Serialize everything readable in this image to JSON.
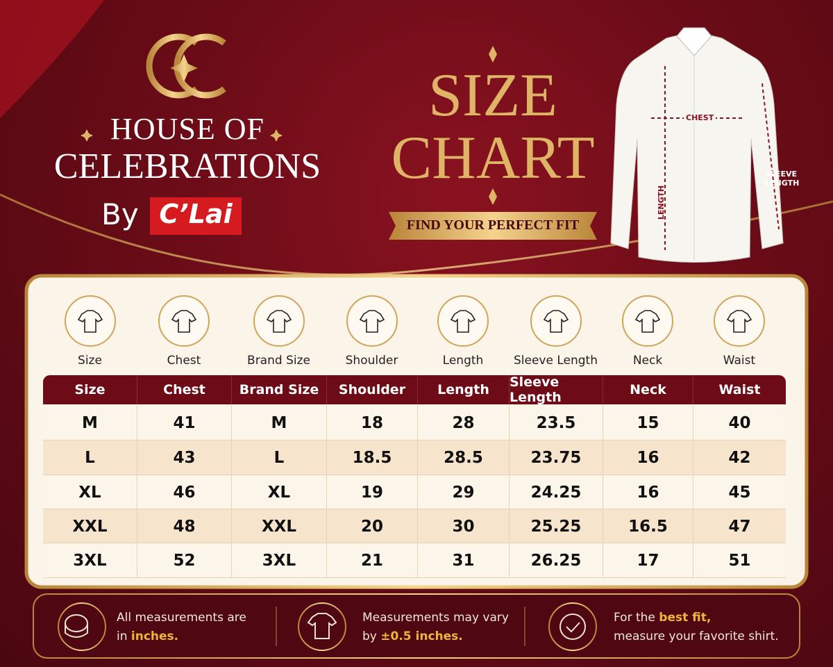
{
  "brand": {
    "line1": "HOUSE OF",
    "line2": "CELEBRATIONS",
    "by": "By",
    "label": "C’Lai"
  },
  "title": {
    "line1": "SIZE",
    "line2": "CHART",
    "tagline": "FIND YOUR PERFECT FIT"
  },
  "diagram": {
    "chest": "CHEST",
    "length": "LENGTH",
    "sleeve": [
      "SLEEVE",
      "LENGTH"
    ]
  },
  "icons": [
    "Size",
    "Chest",
    "Brand Size",
    "Shoulder",
    "Length",
    "Sleeve Length",
    "Neck",
    "Waist"
  ],
  "table": {
    "header": [
      "Size",
      "Chest",
      "Brand Size",
      "Shoulder",
      "Length",
      "Sleeve Length",
      "Neck",
      "Waist"
    ],
    "rows": [
      [
        "M",
        "41",
        "M",
        "18",
        "28",
        "23.5",
        "15",
        "40"
      ],
      [
        "L",
        "43",
        "L",
        "18.5",
        "28.5",
        "23.75",
        "16",
        "42"
      ],
      [
        "XL",
        "46",
        "XL",
        "19",
        "29",
        "24.25",
        "16",
        "45"
      ],
      [
        "XXL",
        "48",
        "XXL",
        "20",
        "30",
        "25.25",
        "16.5",
        "47"
      ],
      [
        "3XL",
        "52",
        "3XL",
        "21",
        "31",
        "26.25",
        "17",
        "51"
      ]
    ]
  },
  "footer": {
    "notes": [
      {
        "line1": "All measurements are",
        "line2": "in",
        "emphasis": "inches."
      },
      {
        "line1": "Measurements may vary",
        "line2": "by",
        "emphasis": "±0.5 inches."
      },
      {
        "line1": "For the",
        "emphasis": "best fit,",
        "line2": "measure your favorite shirt."
      }
    ]
  }
}
